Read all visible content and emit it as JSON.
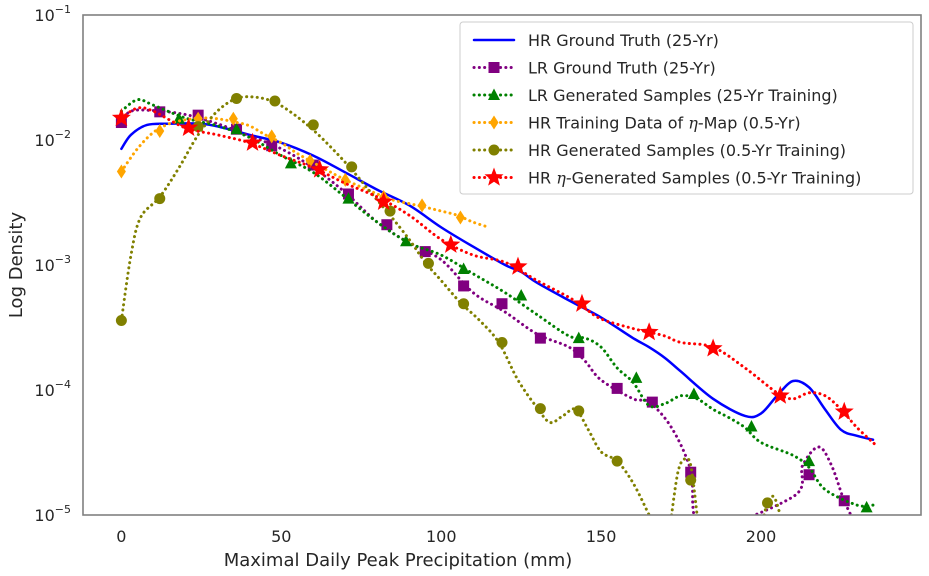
{
  "chart_data": {
    "type": "line",
    "title": "",
    "xlabel": "Maximal Daily Peak Precipitation (mm)",
    "ylabel": "Log Density",
    "xlim": [
      -12,
      250
    ],
    "ylim": [
      1e-05,
      0.1
    ],
    "yscale": "log",
    "grid": false,
    "legend_position": "top-right",
    "x_ticks": [
      0,
      50,
      100,
      150,
      200
    ],
    "x_tick_labels": [
      "0",
      "50",
      "100",
      "150",
      "200"
    ],
    "y_ticks": [
      1e-05,
      0.0001,
      0.001,
      0.01,
      0.1
    ],
    "y_tick_labels": [
      {
        "base": "10",
        "exp": "−5"
      },
      {
        "base": "10",
        "exp": "−4"
      },
      {
        "base": "10",
        "exp": "−3"
      },
      {
        "base": "10",
        "exp": "−2"
      },
      {
        "base": "10",
        "exp": "−1"
      }
    ],
    "series": [
      {
        "name": "HR Ground Truth (25-Yr)",
        "label": "HR Ground Truth (25-Yr)",
        "color": "#0000ff",
        "line": "solid",
        "marker": "none",
        "curve": [
          [
            0,
            0.0085
          ],
          [
            3,
            0.011
          ],
          [
            8,
            0.0132
          ],
          [
            15,
            0.0135
          ],
          [
            25,
            0.0135
          ],
          [
            32,
            0.0125
          ],
          [
            40,
            0.011
          ],
          [
            50,
            0.0095
          ],
          [
            60,
            0.0075
          ],
          [
            70,
            0.0055
          ],
          [
            80,
            0.004
          ],
          [
            90,
            0.003
          ],
          [
            100,
            0.002
          ],
          [
            110,
            0.0014
          ],
          [
            120,
            0.001
          ],
          [
            125,
            0.00088
          ],
          [
            130,
            0.00072
          ],
          [
            140,
            0.00052
          ],
          [
            150,
            0.00038
          ],
          [
            160,
            0.00026
          ],
          [
            165,
            0.00022
          ],
          [
            170,
            0.00018
          ],
          [
            175,
            0.00014
          ],
          [
            185,
            8.5e-05
          ],
          [
            195,
            6.2e-05
          ],
          [
            200,
            6.5e-05
          ],
          [
            205,
            9e-05
          ],
          [
            210,
            0.000118
          ],
          [
            215,
            0.000105
          ],
          [
            220,
            7e-05
          ],
          [
            225,
            4.8e-05
          ],
          [
            230,
            4.3e-05
          ],
          [
            235,
            4e-05
          ]
        ],
        "points": []
      },
      {
        "name": "LR Ground Truth (25-Yr)",
        "label": "LR Ground Truth (25-Yr)",
        "color": "#800080",
        "line": "dotted",
        "marker": "square",
        "curve": [
          [
            0,
            0.014
          ],
          [
            3,
            0.017
          ],
          [
            10,
            0.0172
          ],
          [
            20,
            0.016
          ],
          [
            30,
            0.0135
          ],
          [
            40,
            0.0108
          ],
          [
            50,
            0.0085
          ],
          [
            60,
            0.006
          ],
          [
            70,
            0.0038
          ],
          [
            80,
            0.0022
          ],
          [
            90,
            0.0015
          ],
          [
            100,
            0.0011
          ],
          [
            110,
            0.0006
          ],
          [
            120,
            0.00042
          ],
          [
            130,
            0.00028
          ],
          [
            140,
            0.00022
          ],
          [
            145,
            0.00017
          ],
          [
            150,
            0.00012
          ],
          [
            160,
            8.5e-05
          ],
          [
            165,
            8e-05
          ],
          [
            172,
            5e-05
          ],
          [
            178,
            2.3e-05
          ],
          [
            182,
            8e-06
          ],
          [
            210,
            1.4e-05
          ],
          [
            213,
            2.5e-05
          ],
          [
            218,
            3.5e-05
          ],
          [
            222,
            2.5e-05
          ],
          [
            226,
            1.3e-05
          ],
          [
            230,
            8e-06
          ]
        ],
        "points": [
          [
            0,
            0.0138
          ],
          [
            12,
            0.0168
          ],
          [
            24,
            0.0158
          ],
          [
            36,
            0.0122
          ],
          [
            47,
            0.009
          ],
          [
            60,
            0.0063
          ],
          [
            71,
            0.0037
          ],
          [
            83,
            0.0021
          ],
          [
            95,
            0.00128
          ],
          [
            107,
            0.00068
          ],
          [
            119,
            0.00049
          ],
          [
            131,
            0.00026
          ],
          [
            143,
            0.0002
          ],
          [
            155,
            0.000103
          ],
          [
            166,
            8e-05
          ],
          [
            178,
            2.2e-05
          ],
          [
            215,
            2.1e-05
          ],
          [
            226,
            1.3e-05
          ]
        ]
      },
      {
        "name": "LR Generated Samples (25-Yr Training)",
        "label": "LR Generated Samples (25-Yr Training)",
        "color": "#008000",
        "line": "dotted",
        "marker": "triangle",
        "curve": [
          [
            0,
            0.017
          ],
          [
            5,
            0.021
          ],
          [
            10,
            0.019
          ],
          [
            20,
            0.015
          ],
          [
            30,
            0.013
          ],
          [
            40,
            0.0105
          ],
          [
            50,
            0.0075
          ],
          [
            60,
            0.0055
          ],
          [
            70,
            0.0035
          ],
          [
            80,
            0.0022
          ],
          [
            90,
            0.0015
          ],
          [
            100,
            0.0012
          ],
          [
            110,
            0.00085
          ],
          [
            120,
            0.0006
          ],
          [
            130,
            0.0004
          ],
          [
            140,
            0.00027
          ],
          [
            145,
            0.00026
          ],
          [
            150,
            0.00022
          ],
          [
            155,
            0.00015
          ],
          [
            160,
            0.000115
          ],
          [
            165,
            7.5e-05
          ],
          [
            170,
            7.8e-05
          ],
          [
            175,
            9e-05
          ],
          [
            180,
            8.5e-05
          ],
          [
            185,
            7e-05
          ],
          [
            190,
            6e-05
          ],
          [
            195,
            5e-05
          ],
          [
            200,
            3.8e-05
          ],
          [
            210,
            3e-05
          ],
          [
            215,
            2.4e-05
          ],
          [
            220,
            1.6e-05
          ],
          [
            230,
            1.2e-05
          ],
          [
            235,
            1.2e-05
          ]
        ],
        "points": [
          [
            18,
            0.0148
          ],
          [
            36,
            0.0122
          ],
          [
            53,
            0.0065
          ],
          [
            71,
            0.0034
          ],
          [
            89,
            0.00155
          ],
          [
            107,
            0.00093
          ],
          [
            125,
            0.00057
          ],
          [
            143,
            0.00026
          ],
          [
            161,
            0.000125
          ],
          [
            179,
            9.3e-05
          ],
          [
            197,
            5.1e-05
          ],
          [
            215,
            2.7e-05
          ],
          [
            233,
            1.15e-05
          ]
        ]
      },
      {
        "name": "HR Training Data of η-Map (0.5-Yr)",
        "label_before": "HR Training Data of ",
        "label_symbol": "η",
        "label_after": "-Map (0.5-Yr)",
        "color": "#ffa500",
        "line": "dotted",
        "marker": "diamond",
        "curve": [
          [
            0,
            0.0056
          ],
          [
            5,
            0.0085
          ],
          [
            10,
            0.0115
          ],
          [
            15,
            0.0135
          ],
          [
            20,
            0.0145
          ],
          [
            25,
            0.015
          ],
          [
            30,
            0.0148
          ],
          [
            35,
            0.014
          ],
          [
            40,
            0.013
          ],
          [
            45,
            0.011
          ],
          [
            50,
            0.0095
          ],
          [
            55,
            0.0078
          ],
          [
            60,
            0.0066
          ],
          [
            65,
            0.0056
          ],
          [
            70,
            0.0048
          ],
          [
            75,
            0.0042
          ],
          [
            80,
            0.0037
          ],
          [
            85,
            0.0033
          ],
          [
            90,
            0.0031
          ],
          [
            95,
            0.0029
          ],
          [
            100,
            0.0027
          ],
          [
            105,
            0.0025
          ],
          [
            110,
            0.0022
          ],
          [
            115,
            0.002
          ]
        ],
        "points": [
          [
            0,
            0.0056
          ],
          [
            12,
            0.0118
          ],
          [
            24,
            0.0148
          ],
          [
            35,
            0.0148
          ],
          [
            47,
            0.0107
          ],
          [
            59,
            0.0068
          ],
          [
            70,
            0.0048
          ],
          [
            82,
            0.0035
          ],
          [
            94,
            0.003
          ],
          [
            106,
            0.0024
          ]
        ]
      },
      {
        "name": "HR Generated Samples (0.5-Yr Training)",
        "label": "HR Generated Samples (0.5-Yr Training)",
        "color": "#808000",
        "line": "dotted",
        "marker": "circle",
        "curve": [
          [
            0,
            0.00036
          ],
          [
            3,
            0.0012
          ],
          [
            6,
            0.0024
          ],
          [
            12,
            0.0035
          ],
          [
            18,
            0.006
          ],
          [
            24,
            0.011
          ],
          [
            30,
            0.017
          ],
          [
            36,
            0.0215
          ],
          [
            42,
            0.022
          ],
          [
            48,
            0.02
          ],
          [
            54,
            0.016
          ],
          [
            60,
            0.012
          ],
          [
            66,
            0.0085
          ],
          [
            72,
            0.0058
          ],
          [
            78,
            0.0038
          ],
          [
            84,
            0.0025
          ],
          [
            90,
            0.0016
          ],
          [
            95,
            0.00105
          ],
          [
            100,
            0.00075
          ],
          [
            106,
            0.0005
          ],
          [
            112,
            0.00036
          ],
          [
            118,
            0.00024
          ],
          [
            124,
            0.00012
          ],
          [
            130,
            7.2e-05
          ],
          [
            134,
            5.5e-05
          ],
          [
            138,
            6.2e-05
          ],
          [
            142,
            7e-05
          ],
          [
            146,
            4.8e-05
          ],
          [
            150,
            3.2e-05
          ],
          [
            155,
            2.7e-05
          ],
          [
            160,
            1.8e-05
          ],
          [
            165,
            1e-05
          ]
        ],
        "points": [
          [
            0,
            0.00036
          ],
          [
            12,
            0.0034
          ],
          [
            24,
            0.0128
          ],
          [
            36,
            0.0215
          ],
          [
            48,
            0.0205
          ],
          [
            60,
            0.0132
          ],
          [
            72,
            0.0061
          ],
          [
            84,
            0.0027
          ],
          [
            96,
            0.00103
          ],
          [
            107,
            0.00049
          ],
          [
            119,
            0.00024
          ],
          [
            131,
            7.1e-05
          ],
          [
            143,
            6.8e-05
          ],
          [
            155,
            2.7e-05
          ],
          [
            178,
            1.9e-05
          ],
          [
            202,
            1.25e-05
          ]
        ],
        "extra_curves": [
          [
            [
              172,
              1e-05
            ],
            [
              174,
              2.2e-05
            ],
            [
              176,
              2.8e-05
            ],
            [
              178,
              2.5e-05
            ],
            [
              180,
              1e-05
            ]
          ],
          [
            [
              201,
              1e-05
            ],
            [
              202,
              1.25e-05
            ],
            [
              204,
              1.4e-05
            ],
            [
              206,
              1e-05
            ]
          ]
        ]
      },
      {
        "name": "HR η-Generated Samples (0.5-Yr Training)",
        "label_before": "HR ",
        "label_symbol": "η",
        "label_after": "-Generated Samples (0.5-Yr Training)",
        "color": "#ff0000",
        "line": "dotted",
        "marker": "star",
        "curve": [
          [
            0,
            0.015
          ],
          [
            5,
            0.018
          ],
          [
            10,
            0.017
          ],
          [
            20,
            0.0125
          ],
          [
            30,
            0.011
          ],
          [
            40,
            0.0095
          ],
          [
            50,
            0.0075
          ],
          [
            60,
            0.006
          ],
          [
            70,
            0.0045
          ],
          [
            80,
            0.0035
          ],
          [
            90,
            0.0025
          ],
          [
            100,
            0.0016
          ],
          [
            110,
            0.0012
          ],
          [
            120,
            0.00105
          ],
          [
            130,
            0.00075
          ],
          [
            140,
            0.00055
          ],
          [
            145,
            0.00045
          ],
          [
            150,
            0.00037
          ],
          [
            160,
            0.00031
          ],
          [
            165,
            0.00029
          ],
          [
            170,
            0.00027
          ],
          [
            175,
            0.00024
          ],
          [
            185,
            0.00022
          ],
          [
            195,
            0.00015
          ],
          [
            205,
            9.5e-05
          ],
          [
            210,
            8.5e-05
          ],
          [
            215,
            9.5e-05
          ],
          [
            220,
            9e-05
          ],
          [
            225,
            7e-05
          ],
          [
            230,
            5e-05
          ],
          [
            236,
            3.6e-05
          ]
        ],
        "points": [
          [
            0,
            0.015
          ],
          [
            21,
            0.0125
          ],
          [
            41,
            0.0095
          ],
          [
            62,
            0.0058
          ],
          [
            82,
            0.0032
          ],
          [
            103,
            0.00145
          ],
          [
            124,
            0.00097
          ],
          [
            144,
            0.00049
          ],
          [
            165,
            0.00029
          ],
          [
            185,
            0.000215
          ],
          [
            206,
            9e-05
          ],
          [
            226,
            6.7e-05
          ]
        ]
      }
    ]
  }
}
